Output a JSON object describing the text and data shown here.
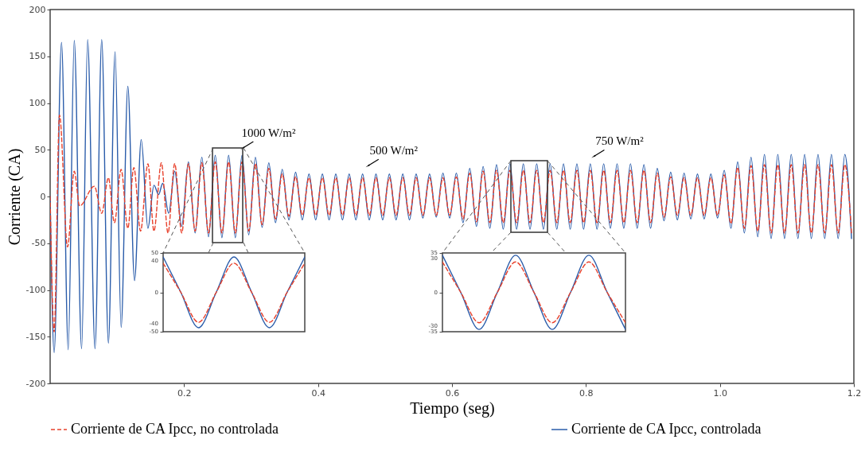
{
  "chart_data": [
    {
      "type": "line",
      "xlabel": "Tiempo (seg)",
      "ylabel": "Corriente (CA)",
      "xlim": [
        0,
        1.2
      ],
      "ylim": [
        -200,
        200
      ],
      "xticks": [
        0.2,
        0.4,
        0.6,
        0.8,
        {
          "value": 1,
          "label": "1.0"
        },
        1.2
      ],
      "yticks": [
        -200,
        -150,
        -100,
        -50,
        0,
        50,
        100,
        150,
        200
      ],
      "legend": "bottom",
      "annotations": [
        {
          "text": "1000 W/m²",
          "x": 0.288,
          "y": 52
        },
        {
          "text": "500 W/m²",
          "x": 0.475,
          "y": 33
        },
        {
          "text": "750 W/m²",
          "x": 0.812,
          "y": 43
        }
      ],
      "series": [
        {
          "name": "Corriente de CA  Ipcc,  no controlada",
          "color": "#e8412c",
          "line_style": "dashed",
          "x": [
            0,
            0.006,
            0.014,
            0.026,
            0.036,
            0.044,
            0.066,
            0.077,
            0.087,
            0.096,
            0.106,
            0.116,
            0.125,
            0.135,
            0.146,
            0.155,
            0.166,
            0.176,
            0.186,
            0.1965,
            0.2065,
            0.2165,
            0.2265,
            0.2365,
            0.2465,
            0.2565,
            0.2665,
            0.2765,
            0.2865,
            0.2965,
            0.3065,
            0.3165,
            0.3265,
            0.3365,
            0.3465,
            0.3565,
            0.3665,
            0.3765,
            0.3865,
            0.3965,
            0.4065,
            0.4165,
            0.4265,
            0.4365,
            0.4465,
            0.4565,
            0.4665,
            0.4765,
            0.4865,
            0.4965,
            0.5065,
            0.5165,
            0.5265,
            0.5365,
            0.5465,
            0.5565,
            0.5665,
            0.5765,
            0.5865,
            0.5965,
            0.6065,
            0.6165,
            0.6265,
            0.6365,
            0.6465,
            0.6565,
            0.6665,
            0.6765,
            0.6865,
            0.6965,
            0.7065,
            0.7165,
            0.7265,
            0.7365,
            0.7465,
            0.7565,
            0.7665,
            0.7765,
            0.7865,
            0.7965,
            0.8065,
            0.8165,
            0.8265,
            0.8365,
            0.8465,
            0.8565,
            0.8665,
            0.8765,
            0.8865,
            0.8965,
            0.9065,
            0.9165,
            0.9265,
            0.9365,
            0.9465,
            0.9565,
            0.9665,
            0.9765,
            0.9865,
            0.9965,
            1.0065,
            1.0165,
            1.0265,
            1.0365,
            1.0465,
            1.0565,
            1.0665,
            1.0765,
            1.0865,
            1.0965,
            1.1065,
            1.1165,
            1.1265,
            1.1365,
            1.1465,
            1.1565,
            1.1665,
            1.1765,
            1.1865,
            1.1965
          ],
          "values": [
            0,
            -145,
            87,
            -54,
            27,
            -10,
            11,
            -18,
            20,
            -28,
            29,
            -34,
            31,
            -37,
            35,
            -37,
            36,
            -39,
            35,
            -39,
            35,
            -37,
            36,
            -39,
            37,
            -39,
            37,
            -39,
            37,
            -37,
            35,
            -30,
            30,
            -24,
            24,
            -21,
            21,
            -20,
            20,
            -20,
            20,
            -20,
            20,
            -20,
            20,
            -20,
            20,
            -20,
            20,
            -20,
            20,
            -20,
            20,
            -20,
            20,
            -20,
            20,
            -20,
            20,
            -20,
            21,
            -24,
            25,
            -27,
            27,
            -28,
            28,
            -28,
            28,
            -28,
            28,
            -28,
            28,
            -28,
            28,
            -28,
            28,
            -28,
            28,
            -28,
            28,
            -28,
            28,
            -28,
            28,
            -28,
            28,
            -28,
            28,
            -28,
            25,
            -22,
            21,
            -20,
            20,
            -20,
            20,
            -20,
            20,
            -20,
            23,
            -29,
            31,
            -34,
            33,
            -37,
            34,
            -39,
            34,
            -39,
            34,
            -39,
            34,
            -39,
            34,
            -39,
            34,
            -39,
            34,
            -39
          ]
        },
        {
          "name": "Corriente de CA  Ipcc,  controlada",
          "color": "#2a5caa",
          "line_style": "solid",
          "x": [
            0,
            0.006,
            0.017,
            0.027,
            0.036,
            0.047,
            0.056,
            0.067,
            0.077,
            0.087,
            0.097,
            0.106,
            0.116,
            0.126,
            0.136,
            0.146,
            0.155,
            0.162,
            0.168,
            0.177,
            0.186,
            0.1965,
            0.2065,
            0.2165,
            0.2265,
            0.2365,
            0.2465,
            0.2565,
            0.2665,
            0.2765,
            0.2865,
            0.2965,
            0.3065,
            0.3165,
            0.3265,
            0.3365,
            0.3465,
            0.3565,
            0.3665,
            0.3765,
            0.3865,
            0.3965,
            0.4065,
            0.4165,
            0.4265,
            0.4365,
            0.4465,
            0.4565,
            0.4665,
            0.4765,
            0.4865,
            0.4965,
            0.5065,
            0.5165,
            0.5265,
            0.5365,
            0.5465,
            0.5565,
            0.5665,
            0.5765,
            0.5865,
            0.5965,
            0.6065,
            0.6165,
            0.6265,
            0.6365,
            0.6465,
            0.6565,
            0.6665,
            0.6765,
            0.6865,
            0.6965,
            0.7065,
            0.7165,
            0.7265,
            0.7365,
            0.7465,
            0.7565,
            0.7665,
            0.7765,
            0.7865,
            0.7965,
            0.8065,
            0.8165,
            0.8265,
            0.8365,
            0.8465,
            0.8565,
            0.8665,
            0.8765,
            0.8865,
            0.8965,
            0.9065,
            0.9165,
            0.9265,
            0.9365,
            0.9465,
            0.9565,
            0.9665,
            0.9765,
            0.9865,
            0.9965,
            1.0065,
            1.0165,
            1.0265,
            1.0365,
            1.0465,
            1.0565,
            1.0665,
            1.0765,
            1.0865,
            1.0965,
            1.1065,
            1.1165,
            1.1265,
            1.1365,
            1.1465,
            1.1565,
            1.1665,
            1.1765,
            1.1865,
            1.1965
          ],
          "values": [
            0,
            -167,
            165,
            -164,
            167,
            -163,
            168,
            -163,
            168,
            -157,
            155,
            -140,
            118,
            -90,
            61,
            -34,
            12,
            2,
            14,
            -18,
            27,
            -32,
            37,
            -39,
            42,
            -43,
            44,
            -44,
            44,
            -44,
            44,
            -41,
            42,
            -33,
            36,
            -28,
            29,
            -25,
            26,
            -25,
            24,
            -25,
            24,
            -25,
            24,
            -25,
            24,
            -25,
            24,
            -25,
            24,
            -25,
            24,
            -25,
            24,
            -25,
            24,
            -23,
            24,
            -22,
            25,
            -23,
            25,
            -28,
            30,
            -32,
            32,
            -34,
            34,
            -35,
            35,
            -35,
            35,
            -35,
            35,
            -35,
            35,
            -35,
            35,
            -35,
            35,
            -35,
            35,
            -35,
            35,
            -34,
            35,
            -34,
            35,
            -34,
            34,
            -34,
            30,
            -26,
            26,
            -25,
            25,
            -24,
            24,
            -24,
            24,
            -23,
            28,
            -34,
            37,
            -39,
            42,
            -43,
            45,
            -45,
            45,
            -45,
            45,
            -45,
            45,
            -45,
            45,
            -45,
            45,
            -45,
            45,
            -45
          ]
        }
      ]
    },
    {
      "type": "line",
      "categories": [
        null,
        null,
        null,
        null,
        null,
        null,
        null,
        null,
        null
      ],
      "ylim": [
        -50,
        50
      ],
      "yticks": [
        -50,
        -40,
        0,
        40,
        50
      ],
      "tick_labels": "y",
      "series": [
        {
          "color": "#e8412c",
          "line_style": "dashed",
          "values": [
            37,
            0,
            -38,
            0,
            37,
            0,
            -38,
            0,
            37
          ]
        },
        {
          "color": "#2a5caa",
          "line_style": "solid",
          "values": [
            45,
            0,
            -45,
            0,
            45,
            0,
            -45,
            0,
            45
          ]
        }
      ]
    },
    {
      "type": "line",
      "categories": [
        null,
        null,
        null,
        null,
        null,
        null,
        null,
        null,
        null,
        null,
        null
      ],
      "ylim": [
        -35,
        35
      ],
      "yticks": [
        -35,
        -30,
        0,
        30,
        35
      ],
      "tick_labels": "y",
      "series": [
        {
          "color": "#e8412c",
          "line_style": "dashed",
          "values": [
            27,
            0,
            -27,
            0,
            27,
            0,
            -27,
            0,
            27,
            0,
            -27
          ]
        },
        {
          "color": "#2a5caa",
          "line_style": "solid",
          "values": [
            33,
            0,
            -33,
            0,
            33,
            0,
            -33,
            0,
            33,
            0,
            -33
          ]
        }
      ]
    }
  ]
}
